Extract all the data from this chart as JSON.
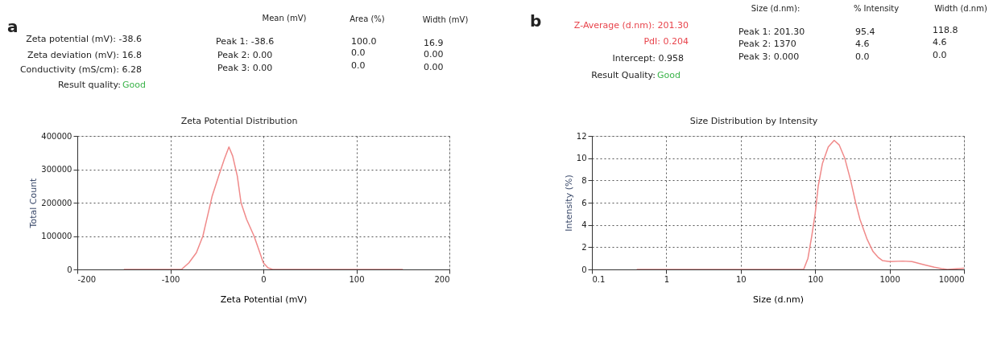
{
  "chart_data": [
    {
      "type": "line",
      "title": "Zeta Potential Distribution",
      "xlabel": "Zeta Potential (mV)",
      "ylabel": "Total Count",
      "x": [
        -150,
        -100,
        -88,
        -80,
        -72,
        -65,
        -60,
        -55,
        -48,
        -42,
        -37,
        -33,
        -28,
        -24,
        -18,
        -10,
        -5,
        0,
        5,
        10,
        50,
        100,
        150
      ],
      "series": [
        {
          "color": "#f08a8a",
          "values": [
            0,
            0,
            0,
            20000,
            50000,
            100000,
            160000,
            220000,
            280000,
            330000,
            367000,
            340000,
            280000,
            200000,
            150000,
            100000,
            60000,
            20000,
            5000,
            0,
            0,
            0,
            0
          ]
        }
      ],
      "xlim": [
        -200,
        200
      ],
      "xticks": [
        -200,
        -100,
        0,
        100,
        200
      ],
      "ylim": [
        0,
        400000
      ],
      "yticks": [
        0,
        100000,
        200000,
        300000,
        400000
      ],
      "grid": true,
      "annotations": [
        "a",
        "Zeta potential (mV): -38.6",
        "Zeta deviation (mV): 16.8",
        "Conductivity (mS/cm): 6.28",
        "Result quality:",
        "Good",
        "Mean (mV)",
        "Area (%)",
        "Width (mV)",
        "Peak 1: -38.6",
        "Peak 2: 0.00",
        "Peak 3: 0.00",
        "100.0",
        "0.0",
        "0.0",
        "16.9",
        "0.00",
        "0.00"
      ]
    },
    {
      "type": "line",
      "title": "Size Distribution by Intensity",
      "xlabel": "Size (d.nm)",
      "ylabel": "Intensity (%)",
      "log": "x",
      "x": [
        0.4,
        70,
        80,
        90,
        100,
        110,
        125,
        150,
        180,
        210,
        250,
        300,
        350,
        400,
        500,
        600,
        700,
        800,
        1000,
        1500,
        2000,
        3000,
        4000,
        5000,
        6000,
        10000
      ],
      "series": [
        {
          "color": "#f08a8a",
          "values": [
            0,
            0,
            1,
            3,
            5,
            7.5,
            9.5,
            11,
            11.6,
            11.2,
            10,
            8,
            6,
            4.5,
            2.7,
            1.6,
            1.1,
            0.8,
            0.7,
            0.75,
            0.7,
            0.4,
            0.2,
            0.08,
            0,
            0.1
          ]
        }
      ],
      "xlim": [
        0.1,
        10000
      ],
      "xticks": [
        0.1,
        1,
        10,
        100,
        1000,
        10000
      ],
      "ylim": [
        0,
        12
      ],
      "yticks": [
        0,
        2,
        4,
        6,
        8,
        10,
        12
      ],
      "grid": true,
      "annotations": [
        "b",
        "Z-Average (d.nm): 201.30",
        "PdI: 0.204",
        "Intercept: 0.958",
        "Result Quality:",
        "Good",
        "Size (d.nm):",
        "% Intensity",
        "Width (d.nm)",
        "Peak 1: 201.30",
        "Peak 2: 1370",
        "Peak 3: 0.000",
        "95.4",
        "4.6",
        "0.0",
        "118.8",
        "4.6",
        "0.0"
      ]
    }
  ]
}
